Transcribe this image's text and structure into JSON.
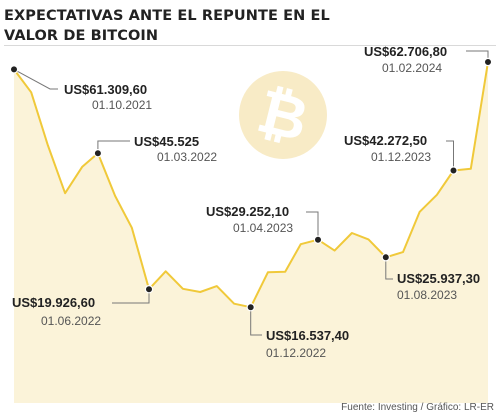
{
  "title": "EXPECTATIVAS ANTE EL REPUNTE EN EL VALOR DE BITCOIN",
  "source": "Fuente: Investing / Gráfico: LR-ER",
  "colors": {
    "line": "#f0c93a",
    "area": "#fbf3d9",
    "watermark": "#f8ebc6",
    "text": "#222222",
    "subtext": "#555555"
  },
  "icons": {
    "watermark": "bitcoin-icon"
  },
  "chart_data": {
    "type": "area",
    "title": "EXPECTATIVAS ANTE EL REPUNTE EN EL VALOR DE BITCOIN",
    "xlabel": "",
    "ylabel": "",
    "x_range": [
      "2021-10",
      "2024-02"
    ],
    "ylim": [
      0,
      65000
    ],
    "grid": false,
    "legend": "none",
    "series": [
      {
        "values": [
          [
            "2021-10-01",
            61309.6
          ],
          [
            "2021-11-01",
            57000
          ],
          [
            "2021-12-01",
            47000
          ],
          [
            "2022-01-01",
            38000
          ],
          [
            "2022-02-01",
            43000
          ],
          [
            "2022-03-01",
            45525
          ],
          [
            "2022-04-01",
            37500
          ],
          [
            "2022-05-01",
            31500
          ],
          [
            "2022-06-01",
            19926.6
          ],
          [
            "2022-07-01",
            23300
          ],
          [
            "2022-08-01",
            20000
          ],
          [
            "2022-09-01",
            19400
          ],
          [
            "2022-10-01",
            20500
          ],
          [
            "2022-11-01",
            17200
          ],
          [
            "2022-12-01",
            16537.4
          ],
          [
            "2023-01-01",
            23100
          ],
          [
            "2023-02-01",
            23200
          ],
          [
            "2023-03-01",
            28400
          ],
          [
            "2023-04-01",
            29252.1
          ],
          [
            "2023-05-01",
            27200
          ],
          [
            "2023-06-01",
            30500
          ],
          [
            "2023-07-01",
            29300
          ],
          [
            "2023-08-01",
            25937.3
          ],
          [
            "2023-09-01",
            26900
          ],
          [
            "2023-10-01",
            34500
          ],
          [
            "2023-11-01",
            37700
          ],
          [
            "2023-12-01",
            42272.5
          ],
          [
            "2024-01-01",
            42600
          ],
          [
            "2024-02-01",
            62706.8
          ]
        ]
      }
    ],
    "annotations": [
      {
        "date": "2021-10-01",
        "value": 61309.6,
        "value_label": "US$61.309,60",
        "date_label": "01.10.2021"
      },
      {
        "date": "2022-03-01",
        "value": 45525,
        "value_label": "US$45.525",
        "date_label": "01.03.2022"
      },
      {
        "date": "2022-06-01",
        "value": 19926.6,
        "value_label": "US$19.926,60",
        "date_label": "01.06.2022"
      },
      {
        "date": "2022-12-01",
        "value": 16537.4,
        "value_label": "US$16.537,40",
        "date_label": "01.12.2022"
      },
      {
        "date": "2023-04-01",
        "value": 29252.1,
        "value_label": "US$29.252,10",
        "date_label": "01.04.2023"
      },
      {
        "date": "2023-08-01",
        "value": 25937.3,
        "value_label": "US$25.937,30",
        "date_label": "01.08.2023"
      },
      {
        "date": "2023-12-01",
        "value": 42272.5,
        "value_label": "US$42.272,50",
        "date_label": "01.12.2023"
      },
      {
        "date": "2024-02-01",
        "value": 62706.8,
        "value_label": "US$62.706,80",
        "date_label": "01.02.2024"
      }
    ]
  }
}
